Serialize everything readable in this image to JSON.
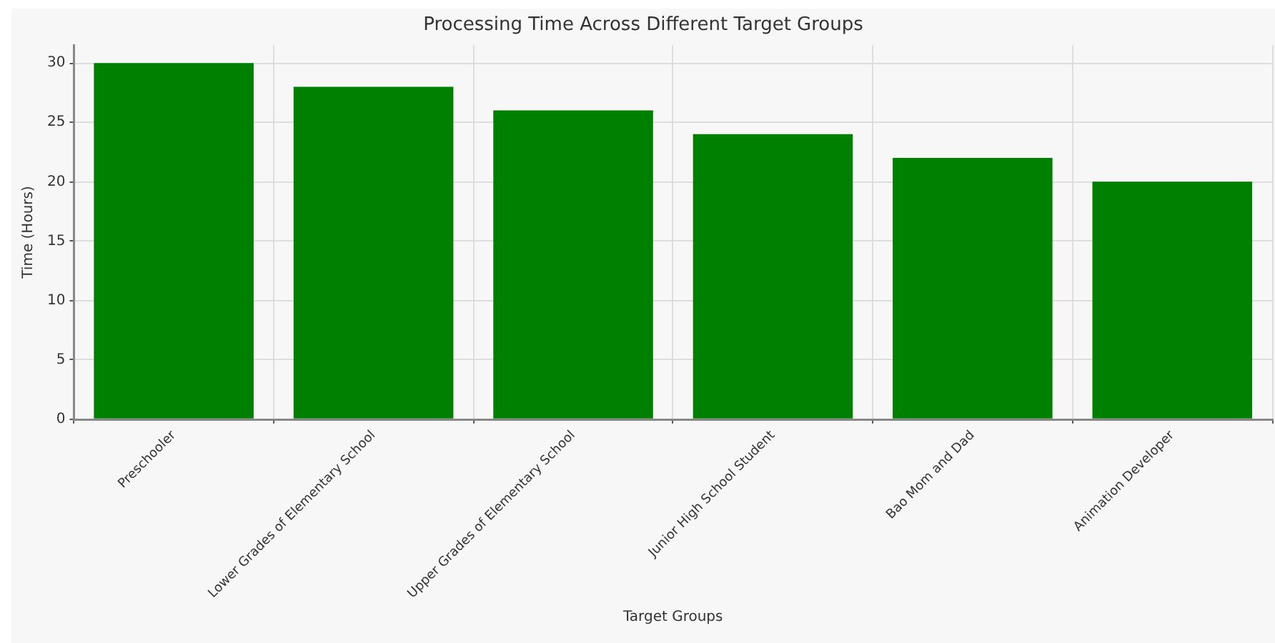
{
  "chart_data": {
    "type": "bar",
    "title": "Processing Time Across Different Target Groups",
    "xlabel": "Target Groups",
    "ylabel": "Time (Hours)",
    "categories": [
      "Preschooler",
      "Lower Grades of Elementary School",
      "Upper Grades of Elementary School",
      "Junior High School Student",
      "Bao Mom and Dad",
      "Animation Developer"
    ],
    "values": [
      30,
      28,
      26,
      24,
      22,
      20
    ],
    "color": "#008000",
    "ylim": [
      0,
      31.5
    ],
    "yticks": [
      0,
      5,
      10,
      15,
      20,
      25,
      30
    ],
    "grid": true
  }
}
